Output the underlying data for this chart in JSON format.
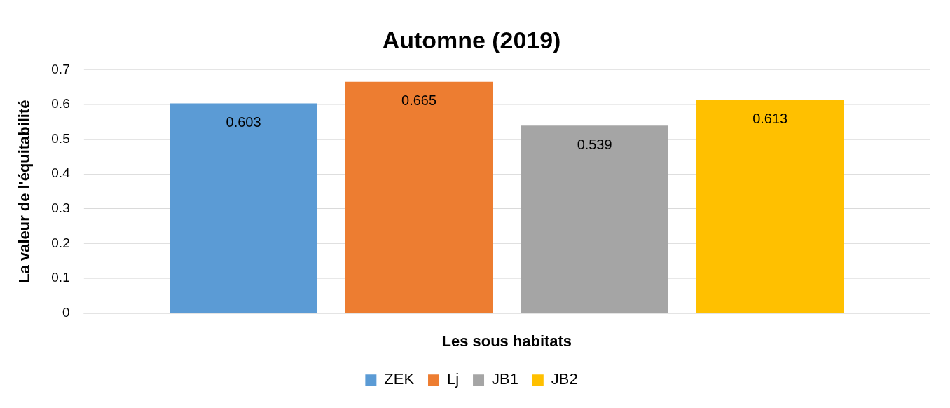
{
  "chart_data": {
    "type": "bar",
    "title": "Automne (2019)",
    "xlabel": "Les sous habitats",
    "ylabel": "La valeur de l'équitabilité",
    "categories": [
      null
    ],
    "series": [
      {
        "name": "ZEK",
        "color": "#5b9bd5",
        "values": [
          0.603
        ]
      },
      {
        "name": "Lj",
        "color": "#ed7d31",
        "values": [
          0.665
        ]
      },
      {
        "name": "JB1",
        "color": "#a5a5a5",
        "values": [
          0.539
        ]
      },
      {
        "name": "JB2",
        "color": "#ffc000",
        "values": [
          0.613
        ]
      }
    ],
    "ylim": [
      0,
      0.7
    ],
    "yticks": [
      0,
      0.1,
      0.2,
      0.3,
      0.4,
      0.5,
      0.6,
      0.7
    ],
    "grid": "y",
    "legend": "bottom",
    "data_labels": true
  }
}
